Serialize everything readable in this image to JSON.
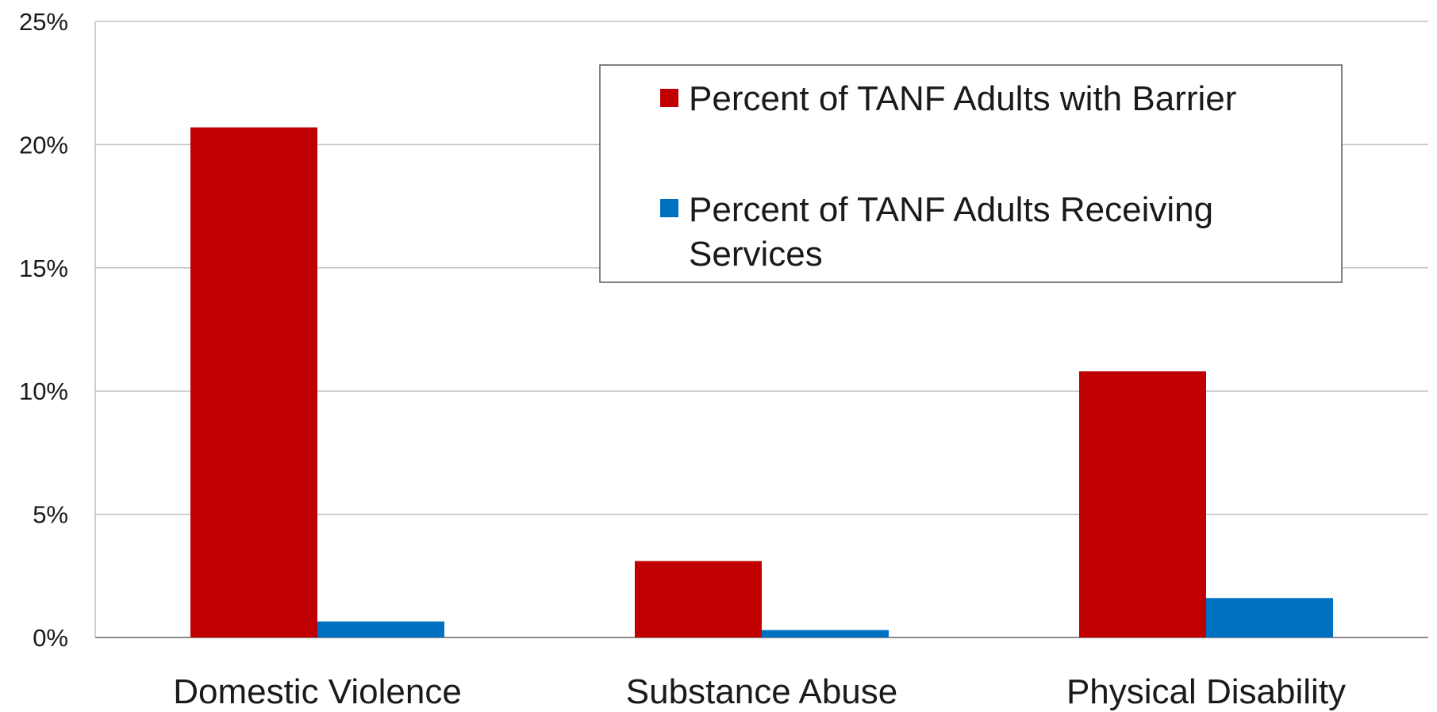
{
  "chart_data": {
    "type": "bar",
    "categories": [
      "Domestic Violence",
      "Substance Abuse",
      "Physical Disability"
    ],
    "series": [
      {
        "name": "Percent of TANF Adults with Barrier",
        "values": [
          20.7,
          3.1,
          10.8
        ],
        "color": "#c00000"
      },
      {
        "name": "Percent of TANF Adults Receiving Services",
        "values": [
          0.65,
          0.3,
          1.6
        ],
        "color": "#0070c0"
      }
    ],
    "y_ticks": [
      "0%",
      "5%",
      "10%",
      "15%",
      "20%",
      "25%"
    ],
    "ylim": [
      0,
      25
    ],
    "grid": true,
    "legend_position": "top-right",
    "title": "",
    "xlabel": "",
    "ylabel": ""
  }
}
